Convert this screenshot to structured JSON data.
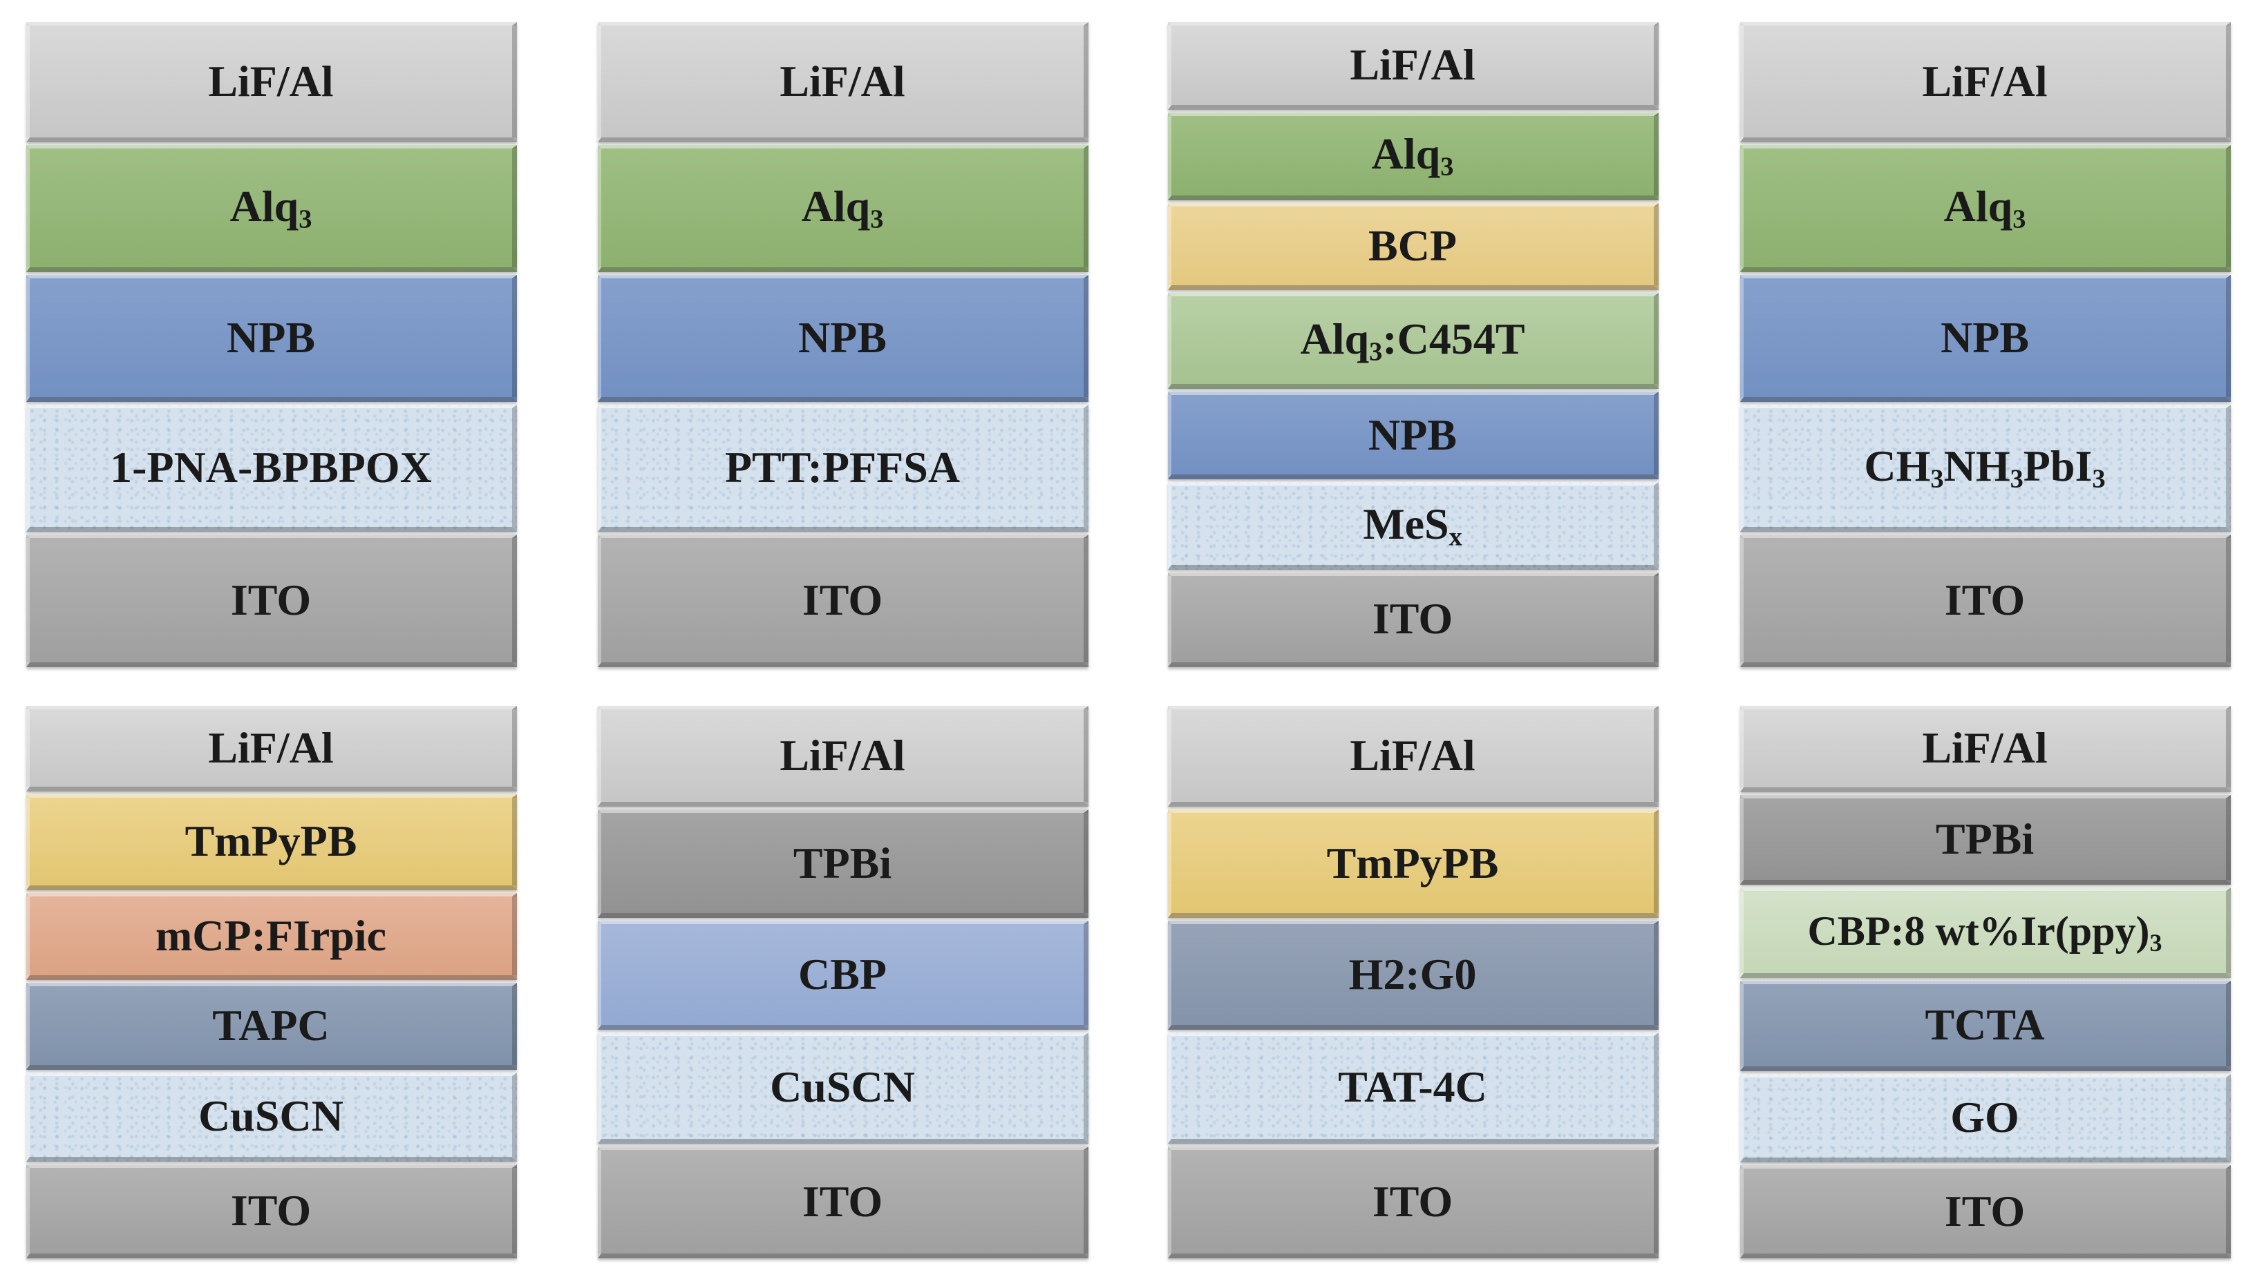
{
  "devices": [
    [
      {
        "text": "LiF/Al",
        "color": "#cfcfcf"
      },
      {
        "text": "Alq",
        "sub": "3",
        "color": "#97b97b"
      },
      {
        "text": "NPB",
        "color": "#7b97c7"
      },
      {
        "text": "1-PNA-BPBPOX",
        "color": "#d5e2ee"
      },
      {
        "text": "ITO",
        "color": "#a8a8a8"
      }
    ],
    [
      {
        "text": "LiF/Al",
        "color": "#cfcfcf"
      },
      {
        "text": "Alq",
        "sub": "3",
        "color": "#97b97b"
      },
      {
        "text": "NPB",
        "color": "#7b97c7"
      },
      {
        "text": "PTT:PFFSA",
        "color": "#d5e2ee"
      },
      {
        "text": "ITO",
        "color": "#a8a8a8"
      }
    ],
    [
      {
        "text": "LiF/Al",
        "color": "#cfcfcf"
      },
      {
        "text": "Alq",
        "sub": "3",
        "color": "#97b97b"
      },
      {
        "text": "BCP",
        "color": "#e8cf8d"
      },
      {
        "text": "Alq",
        "sub": "3",
        "tail": ":C454T",
        "color": "#afc99b"
      },
      {
        "text": "NPB",
        "color": "#7b97c7"
      },
      {
        "text": "MeS",
        "sub": "x",
        "color": "#d5e2ee"
      },
      {
        "text": "ITO",
        "color": "#a8a8a8"
      }
    ],
    [
      {
        "text": "LiF/Al",
        "color": "#cfcfcf"
      },
      {
        "text": "Alq",
        "sub": "3",
        "color": "#97b97b"
      },
      {
        "text": "NPB",
        "color": "#7b97c7"
      },
      {
        "text": "CH",
        "sub": "3",
        "tail": "NH",
        "sub2": "3",
        "tail2": "PbI",
        "sub3": "3",
        "color": "#d5e2ee"
      },
      {
        "text": "ITO",
        "color": "#a8a8a8"
      }
    ],
    [
      {
        "text": "LiF/Al",
        "color": "#cfcfcf"
      },
      {
        "text": "TmPyPB",
        "color": "#e7cd80"
      },
      {
        "text": "mCP:FIrpic",
        "color": "#e0ab8f"
      },
      {
        "text": "TAPC",
        "color": "#899ab1"
      },
      {
        "text": "CuSCN",
        "color": "#d5e2ee"
      },
      {
        "text": "ITO",
        "color": "#a8a8a8"
      }
    ],
    [
      {
        "text": "LiF/Al",
        "color": "#cfcfcf"
      },
      {
        "text": "TPBi",
        "color": "#9b9b9b"
      },
      {
        "text": "CBP",
        "color": "#9cb0d6"
      },
      {
        "text": "CuSCN",
        "color": "#d5e2ee"
      },
      {
        "text": "ITO",
        "color": "#a8a8a8"
      }
    ],
    [
      {
        "text": "LiF/Al",
        "color": "#cfcfcf"
      },
      {
        "text": "TmPyPB",
        "color": "#e7cd80"
      },
      {
        "text": "H2:G0",
        "color": "#8d9bb0"
      },
      {
        "text": "TAT-4C",
        "color": "#d5e2ee"
      },
      {
        "text": "ITO",
        "color": "#a8a8a8"
      }
    ],
    [
      {
        "text": "LiF/Al",
        "color": "#cfcfcf"
      },
      {
        "text": "TPBi",
        "color": "#9b9b9b"
      },
      {
        "text": "CBP:8 wt%Ir(ppy)",
        "sub": "3",
        "color": "#ccdcbf"
      },
      {
        "text": "TCTA",
        "color": "#899ab1"
      },
      {
        "text": "GO",
        "color": "#d5e2ee"
      },
      {
        "text": "ITO",
        "color": "#a8a8a8"
      }
    ]
  ]
}
